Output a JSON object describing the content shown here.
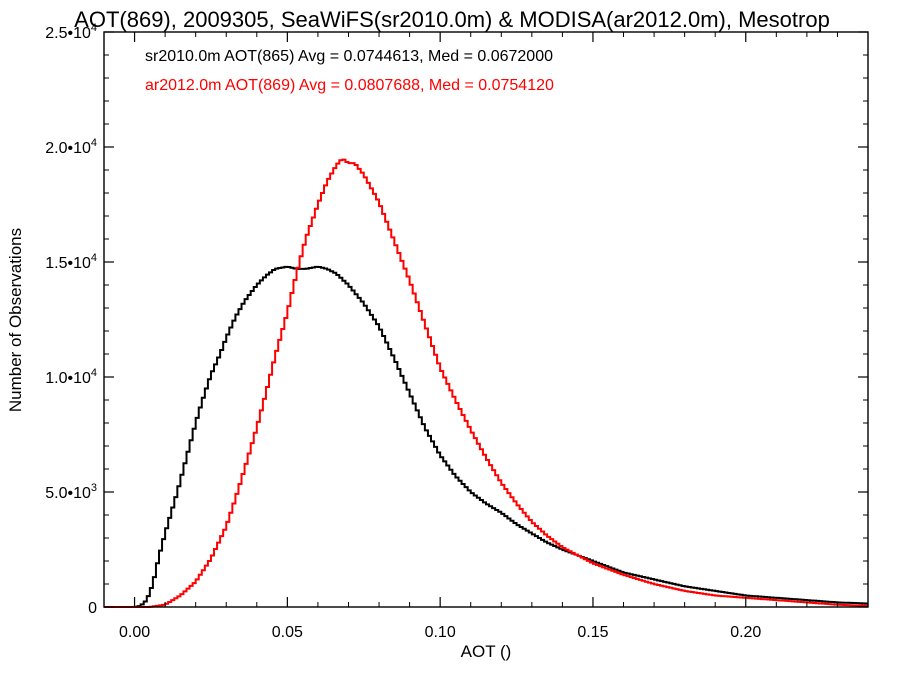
{
  "chart_data": {
    "type": "line",
    "title": "AOT(869), 2009305, SeaWiFS(sr2010.0m) & MODISA(ar2012.0m), Mesotrop",
    "xlabel": "AOT ()",
    "ylabel": "Number of Observations",
    "xlim": [
      -0.01,
      0.24
    ],
    "ylim": [
      0,
      25000
    ],
    "grid": false,
    "legend_position": "top-left",
    "x_ticks": [
      {
        "value": 0.0,
        "label": "0.00"
      },
      {
        "value": 0.05,
        "label": "0.05"
      },
      {
        "value": 0.1,
        "label": "0.10"
      },
      {
        "value": 0.15,
        "label": "0.15"
      },
      {
        "value": 0.2,
        "label": "0.20"
      }
    ],
    "y_ticks": [
      {
        "value": 0,
        "mantissa": "0",
        "exp": ""
      },
      {
        "value": 5000,
        "mantissa": "5.0•1",
        "exp": "3"
      },
      {
        "value": 10000,
        "mantissa": "1.0•1",
        "exp": "4"
      },
      {
        "value": 15000,
        "mantissa": "1.5•1",
        "exp": "4"
      },
      {
        "value": 20000,
        "mantissa": "2.0•1",
        "exp": "4"
      },
      {
        "value": 25000,
        "mantissa": "2.5•1",
        "exp": "4"
      }
    ],
    "series": [
      {
        "name": "sr2010.0m AOT(865) Avg = 0.0744613, Med = 0.0672000",
        "color": "#000000",
        "x": [
          -0.01,
          0.0,
          0.002,
          0.004,
          0.006,
          0.008,
          0.01,
          0.012,
          0.014,
          0.016,
          0.018,
          0.02,
          0.022,
          0.025,
          0.028,
          0.03,
          0.033,
          0.036,
          0.04,
          0.043,
          0.046,
          0.05,
          0.053,
          0.056,
          0.06,
          0.063,
          0.066,
          0.07,
          0.075,
          0.08,
          0.085,
          0.09,
          0.095,
          0.1,
          0.105,
          0.11,
          0.115,
          0.12,
          0.125,
          0.13,
          0.135,
          0.14,
          0.15,
          0.16,
          0.17,
          0.18,
          0.19,
          0.2,
          0.21,
          0.22,
          0.23,
          0.24
        ],
        "y": [
          0,
          0,
          50,
          300,
          1000,
          2200,
          3200,
          4100,
          5000,
          6000,
          7000,
          8000,
          8900,
          10100,
          11000,
          11700,
          12600,
          13300,
          14000,
          14400,
          14700,
          14800,
          14700,
          14700,
          14800,
          14700,
          14500,
          14000,
          13200,
          12200,
          10800,
          9300,
          7800,
          6600,
          5700,
          5000,
          4500,
          4100,
          3600,
          3200,
          2800,
          2500,
          2000,
          1500,
          1200,
          900,
          700,
          500,
          400,
          300,
          200,
          150
        ]
      },
      {
        "name": "ar2012.0m AOT(869) Avg = 0.0807688, Med = 0.0754120",
        "color": "#ff0000",
        "x": [
          -0.01,
          0.0,
          0.005,
          0.01,
          0.015,
          0.02,
          0.025,
          0.03,
          0.033,
          0.036,
          0.04,
          0.043,
          0.046,
          0.05,
          0.053,
          0.056,
          0.06,
          0.063,
          0.066,
          0.068,
          0.07,
          0.072,
          0.075,
          0.08,
          0.085,
          0.09,
          0.095,
          0.1,
          0.105,
          0.11,
          0.115,
          0.12,
          0.125,
          0.13,
          0.135,
          0.14,
          0.15,
          0.16,
          0.17,
          0.18,
          0.19,
          0.2,
          0.21,
          0.22,
          0.23,
          0.24
        ],
        "y": [
          0,
          0,
          0,
          100,
          500,
          1100,
          2100,
          3500,
          4700,
          6000,
          7800,
          9300,
          10900,
          12800,
          14500,
          16000,
          17500,
          18500,
          19200,
          19500,
          19300,
          19300,
          18800,
          17600,
          15900,
          14200,
          12300,
          10400,
          9000,
          7700,
          6500,
          5400,
          4500,
          3700,
          3100,
          2600,
          1900,
          1400,
          1000,
          700,
          500,
          400,
          300,
          200,
          100,
          50
        ]
      }
    ]
  }
}
